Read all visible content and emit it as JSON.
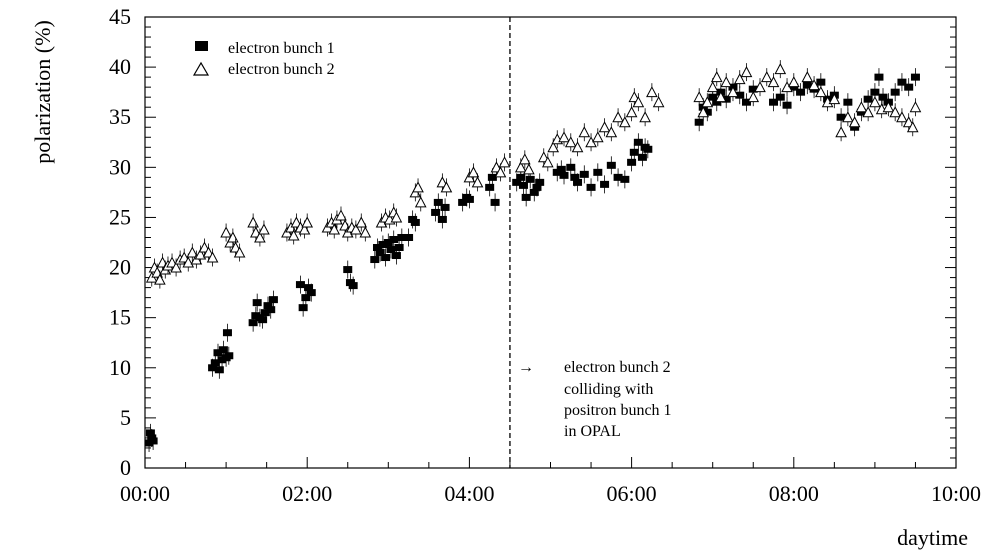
{
  "chart_data": {
    "type": "scatter",
    "title": "",
    "xlabel": "daytime",
    "ylabel": "polarization (%)",
    "xlim": [
      "00:00",
      "10:00"
    ],
    "ylim": [
      0,
      45
    ],
    "x_ticks": [
      "00:00",
      "02:00",
      "04:00",
      "06:00",
      "08:00",
      "10:00"
    ],
    "y_ticks": [
      "0",
      "5",
      "10",
      "15",
      "20",
      "25",
      "30",
      "35",
      "40",
      "45"
    ],
    "grid": false,
    "legend_position": "top-left",
    "vertical_marker": {
      "x": "04:30",
      "style": "dashed"
    },
    "annotation": {
      "arrow": "→",
      "lines": [
        "electron bunch 2",
        "colliding with",
        "positron bunch 1",
        "in OPAL"
      ]
    },
    "series": [
      {
        "name": "electron bunch 1",
        "marker": "filled-square",
        "points": [
          [
            "00:03",
            2.5
          ],
          [
            "00:04",
            3.5
          ],
          [
            "00:05",
            3.0
          ],
          [
            "00:06",
            2.7
          ],
          [
            "00:50",
            10.0
          ],
          [
            "00:52",
            10.5
          ],
          [
            "00:54",
            11.5
          ],
          [
            "00:55",
            9.8
          ],
          [
            "00:57",
            10.8
          ],
          [
            "00:58",
            11.8
          ],
          [
            "01:00",
            11.0
          ],
          [
            "01:01",
            13.5
          ],
          [
            "01:02",
            11.2
          ],
          [
            "01:20",
            14.5
          ],
          [
            "01:22",
            15.2
          ],
          [
            "01:23",
            16.5
          ],
          [
            "01:25",
            15.0
          ],
          [
            "01:27",
            14.8
          ],
          [
            "01:29",
            15.5
          ],
          [
            "01:31",
            16.2
          ],
          [
            "01:33",
            15.8
          ],
          [
            "01:35",
            16.8
          ],
          [
            "01:55",
            18.3
          ],
          [
            "01:57",
            16.0
          ],
          [
            "01:59",
            17.0
          ],
          [
            "02:01",
            18.0
          ],
          [
            "02:03",
            17.5
          ],
          [
            "02:30",
            19.8
          ],
          [
            "02:32",
            18.5
          ],
          [
            "02:34",
            18.2
          ],
          [
            "02:50",
            20.8
          ],
          [
            "02:52",
            22.0
          ],
          [
            "02:54",
            21.5
          ],
          [
            "02:56",
            22.3
          ],
          [
            "02:58",
            21.0
          ],
          [
            "03:00",
            22.5
          ],
          [
            "03:02",
            21.8
          ],
          [
            "03:04",
            22.8
          ],
          [
            "03:06",
            21.2
          ],
          [
            "03:08",
            22.0
          ],
          [
            "03:10",
            23.0
          ],
          [
            "03:15",
            23.0
          ],
          [
            "03:18",
            24.8
          ],
          [
            "03:20",
            24.5
          ],
          [
            "03:35",
            25.5
          ],
          [
            "03:37",
            26.5
          ],
          [
            "03:40",
            24.8
          ],
          [
            "03:42",
            26.0
          ],
          [
            "03:55",
            26.5
          ],
          [
            "03:58",
            27.0
          ],
          [
            "04:00",
            26.8
          ],
          [
            "04:15",
            28.0
          ],
          [
            "04:17",
            29.0
          ],
          [
            "04:19",
            26.5
          ],
          [
            "04:35",
            28.5
          ],
          [
            "04:38",
            29.0
          ],
          [
            "04:40",
            28.2
          ],
          [
            "04:42",
            27.0
          ],
          [
            "04:45",
            28.8
          ],
          [
            "04:48",
            27.5
          ],
          [
            "04:50",
            28.0
          ],
          [
            "04:52",
            28.5
          ],
          [
            "05:05",
            29.5
          ],
          [
            "05:08",
            29.8
          ],
          [
            "05:10",
            29.2
          ],
          [
            "05:15",
            30.0
          ],
          [
            "05:18",
            29.0
          ],
          [
            "05:20",
            28.5
          ],
          [
            "05:25",
            29.3
          ],
          [
            "05:30",
            28.0
          ],
          [
            "05:35",
            29.5
          ],
          [
            "05:40",
            28.3
          ],
          [
            "05:45",
            30.2
          ],
          [
            "05:50",
            29.0
          ],
          [
            "05:55",
            28.8
          ],
          [
            "06:00",
            30.5
          ],
          [
            "06:02",
            31.5
          ],
          [
            "06:05",
            32.5
          ],
          [
            "06:08",
            31.0
          ],
          [
            "06:10",
            32.0
          ],
          [
            "06:12",
            31.8
          ],
          [
            "06:50",
            34.5
          ],
          [
            "06:53",
            36.0
          ],
          [
            "06:56",
            35.5
          ],
          [
            "07:00",
            37.0
          ],
          [
            "07:03",
            36.5
          ],
          [
            "07:06",
            37.5
          ],
          [
            "07:10",
            36.8
          ],
          [
            "07:15",
            38.0
          ],
          [
            "07:20",
            37.2
          ],
          [
            "07:25",
            36.5
          ],
          [
            "07:30",
            37.8
          ],
          [
            "07:45",
            36.5
          ],
          [
            "07:50",
            37.0
          ],
          [
            "07:55",
            36.2
          ],
          [
            "08:00",
            38.0
          ],
          [
            "08:05",
            37.5
          ],
          [
            "08:10",
            38.2
          ],
          [
            "08:15",
            37.8
          ],
          [
            "08:20",
            38.5
          ],
          [
            "08:25",
            36.8
          ],
          [
            "08:30",
            37.2
          ],
          [
            "08:35",
            35.0
          ],
          [
            "08:40",
            36.5
          ],
          [
            "08:45",
            34.0
          ],
          [
            "08:50",
            35.5
          ],
          [
            "08:55",
            36.8
          ],
          [
            "09:00",
            37.5
          ],
          [
            "09:03",
            39.0
          ],
          [
            "09:06",
            37.0
          ],
          [
            "09:10",
            36.5
          ],
          [
            "09:15",
            37.5
          ],
          [
            "09:20",
            38.5
          ],
          [
            "09:25",
            38.0
          ],
          [
            "09:30",
            39.0
          ]
        ]
      },
      {
        "name": "electron bunch 2",
        "marker": "open-triangle",
        "points": [
          [
            "00:05",
            19.0
          ],
          [
            "00:07",
            20.0
          ],
          [
            "00:09",
            19.5
          ],
          [
            "00:11",
            18.8
          ],
          [
            "00:13",
            20.5
          ],
          [
            "00:15",
            19.8
          ],
          [
            "00:17",
            20.2
          ],
          [
            "00:20",
            20.5
          ],
          [
            "00:23",
            20.0
          ],
          [
            "00:26",
            20.8
          ],
          [
            "00:29",
            21.0
          ],
          [
            "00:32",
            20.5
          ],
          [
            "00:35",
            21.5
          ],
          [
            "00:38",
            20.8
          ],
          [
            "00:41",
            21.3
          ],
          [
            "00:44",
            22.0
          ],
          [
            "00:47",
            21.5
          ],
          [
            "00:50",
            21.0
          ],
          [
            "01:00",
            23.5
          ],
          [
            "01:03",
            22.5
          ],
          [
            "01:05",
            23.0
          ],
          [
            "01:07",
            22.0
          ],
          [
            "01:10",
            21.5
          ],
          [
            "01:20",
            24.5
          ],
          [
            "01:22",
            23.5
          ],
          [
            "01:25",
            23.0
          ],
          [
            "01:28",
            23.8
          ],
          [
            "01:45",
            23.5
          ],
          [
            "01:48",
            24.0
          ],
          [
            "01:50",
            23.2
          ],
          [
            "01:52",
            24.5
          ],
          [
            "01:55",
            24.0
          ],
          [
            "01:58",
            23.8
          ],
          [
            "02:00",
            24.5
          ],
          [
            "02:15",
            24.0
          ],
          [
            "02:18",
            24.5
          ],
          [
            "02:20",
            23.8
          ],
          [
            "02:22",
            24.8
          ],
          [
            "02:25",
            25.2
          ],
          [
            "02:28",
            24.2
          ],
          [
            "02:30",
            23.5
          ],
          [
            "02:33",
            24.0
          ],
          [
            "02:36",
            23.8
          ],
          [
            "02:40",
            24.5
          ],
          [
            "02:43",
            23.5
          ],
          [
            "02:55",
            24.5
          ],
          [
            "02:58",
            25.0
          ],
          [
            "03:01",
            24.8
          ],
          [
            "03:04",
            25.5
          ],
          [
            "03:06",
            25.0
          ],
          [
            "03:20",
            27.5
          ],
          [
            "03:22",
            28.0
          ],
          [
            "03:24",
            26.5
          ],
          [
            "03:40",
            28.5
          ],
          [
            "03:43",
            28.0
          ],
          [
            "04:00",
            29.0
          ],
          [
            "04:03",
            29.5
          ],
          [
            "04:06",
            28.5
          ],
          [
            "04:20",
            30.0
          ],
          [
            "04:23",
            29.5
          ],
          [
            "04:26",
            30.5
          ],
          [
            "04:38",
            30.0
          ],
          [
            "04:41",
            30.8
          ],
          [
            "04:44",
            29.8
          ],
          [
            "04:55",
            31.0
          ],
          [
            "04:58",
            30.5
          ],
          [
            "05:02",
            32.0
          ],
          [
            "05:05",
            32.8
          ],
          [
            "05:10",
            33.0
          ],
          [
            "05:15",
            32.5
          ],
          [
            "05:20",
            32.0
          ],
          [
            "05:25",
            33.5
          ],
          [
            "05:30",
            32.5
          ],
          [
            "05:35",
            33.0
          ],
          [
            "05:40",
            34.0
          ],
          [
            "05:45",
            33.5
          ],
          [
            "05:50",
            35.0
          ],
          [
            "05:55",
            34.5
          ],
          [
            "06:00",
            35.5
          ],
          [
            "06:02",
            37.0
          ],
          [
            "06:05",
            36.5
          ],
          [
            "06:10",
            35.0
          ],
          [
            "06:15",
            37.5
          ],
          [
            "06:20",
            36.5
          ],
          [
            "06:50",
            37.0
          ],
          [
            "06:53",
            35.5
          ],
          [
            "06:56",
            36.5
          ],
          [
            "07:00",
            38.0
          ],
          [
            "07:03",
            39.0
          ],
          [
            "07:06",
            37.0
          ],
          [
            "07:10",
            38.5
          ],
          [
            "07:15",
            37.5
          ],
          [
            "07:20",
            38.8
          ],
          [
            "07:25",
            39.5
          ],
          [
            "07:30",
            37.0
          ],
          [
            "07:35",
            38.0
          ],
          [
            "07:40",
            39.0
          ],
          [
            "07:45",
            38.5
          ],
          [
            "07:50",
            39.8
          ],
          [
            "07:55",
            38.0
          ],
          [
            "08:00",
            38.5
          ],
          [
            "08:10",
            39.0
          ],
          [
            "08:15",
            38.2
          ],
          [
            "08:20",
            37.5
          ],
          [
            "08:25",
            36.5
          ],
          [
            "08:30",
            36.8
          ],
          [
            "08:35",
            33.5
          ],
          [
            "08:40",
            35.0
          ],
          [
            "08:45",
            34.5
          ],
          [
            "08:50",
            36.0
          ],
          [
            "08:55",
            35.5
          ],
          [
            "09:00",
            36.5
          ],
          [
            "09:05",
            35.8
          ],
          [
            "09:10",
            36.0
          ],
          [
            "09:15",
            35.5
          ],
          [
            "09:20",
            35.0
          ],
          [
            "09:25",
            34.5
          ],
          [
            "09:28",
            34.0
          ],
          [
            "09:30",
            36.0
          ]
        ]
      }
    ]
  }
}
